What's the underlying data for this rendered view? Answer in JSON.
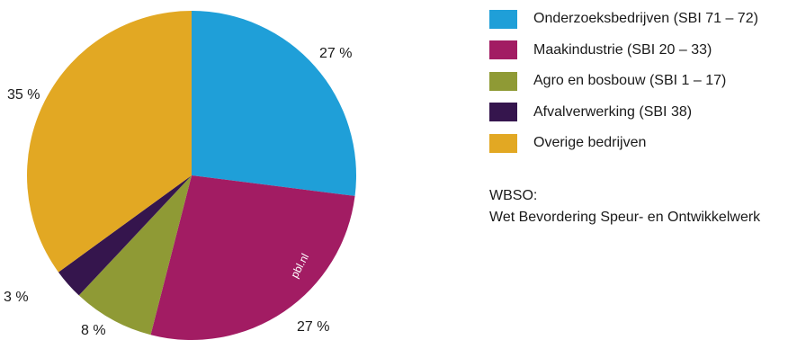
{
  "chart_data": {
    "type": "pie",
    "title": "",
    "start": "12 o'clock",
    "direction": "clockwise",
    "slices": [
      {
        "label": "Onderzoeksbedrijven (SBI 71 – 72)",
        "value": 27,
        "display": "27 %",
        "color": "#1f9fd8"
      },
      {
        "label": "Maakindustrie (SBI 20 – 33)",
        "value": 27,
        "display": "27 %",
        "color": "#a21c63"
      },
      {
        "label": "Agro en bosbouw (SBI 1 – 17)",
        "value": 8,
        "display": "8 %",
        "color": "#8f9a35"
      },
      {
        "label": "Afvalverwerking (SBI 38)",
        "value": 3,
        "display": "3 %",
        "color": "#35154d"
      },
      {
        "label": "Overige bedrijven",
        "value": 35,
        "display": "35 %",
        "color": "#e2a823"
      }
    ],
    "legend_position": "right"
  },
  "watermark": "pbl.nl",
  "note": {
    "line1": "WBSO:",
    "line2": "Wet Bevordering Speur- en Ontwikkelwerk"
  }
}
